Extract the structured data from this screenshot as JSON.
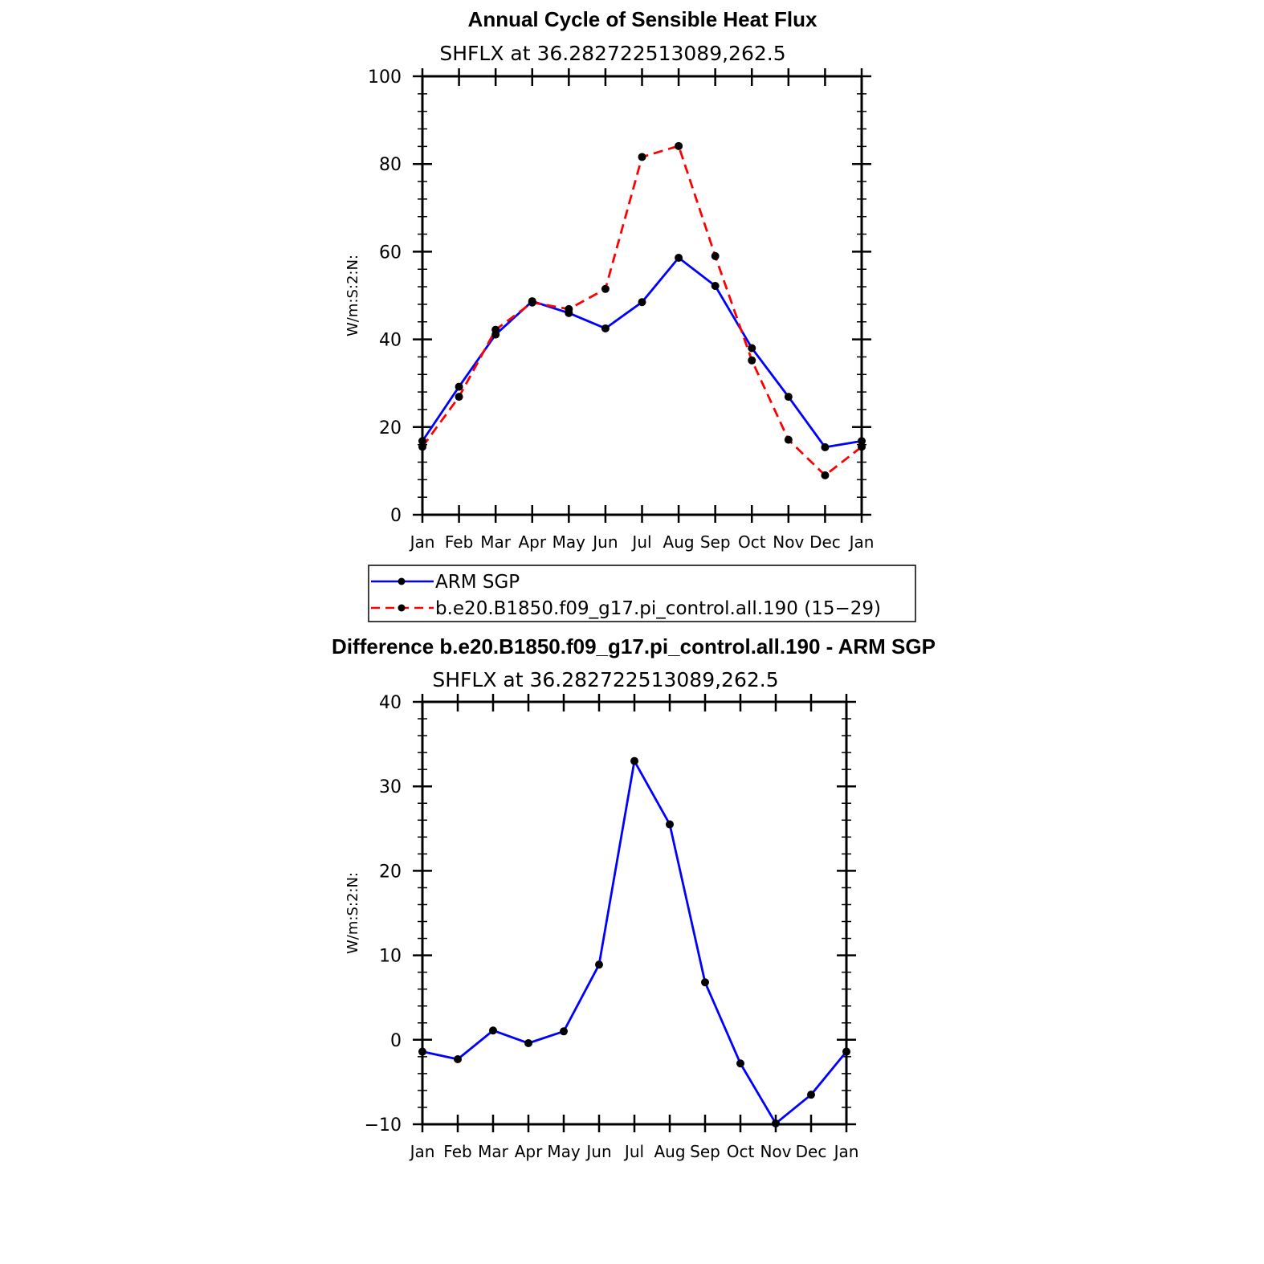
{
  "chart_data": [
    {
      "type": "line",
      "title": "Annual Cycle of Sensible Heat Flux",
      "subtitle": "SHFLX at 36.282722513089,262.5",
      "ylabel": "W/m:S:2:N:",
      "xlabel": "",
      "categories": [
        "Jan",
        "Feb",
        "Mar",
        "Apr",
        "May",
        "Jun",
        "Jul",
        "Aug",
        "Sep",
        "Oct",
        "Nov",
        "Dec",
        "Jan"
      ],
      "ylim": [
        0,
        100
      ],
      "yticks": [
        0,
        20,
        40,
        60,
        80,
        100
      ],
      "ytick_labels": [
        "0",
        "20",
        "40",
        "60",
        "80",
        "100"
      ],
      "series": [
        {
          "name": "ARM SGP",
          "color": "#0000ff",
          "dash": "solid",
          "values": [
            16.8,
            29.2,
            41.1,
            48.7,
            46.0,
            42.5,
            48.5,
            58.6,
            52.2,
            38.0,
            26.9,
            15.4,
            16.8
          ]
        },
        {
          "name": "b.e20.B1850.f09_g17.pi_control.all.190 (15−29)",
          "color": "#ff0000",
          "dash": "dashed",
          "values": [
            15.5,
            26.9,
            42.2,
            48.4,
            46.9,
            51.5,
            81.6,
            84.1,
            59.0,
            35.2,
            17.1,
            9.0,
            15.5
          ]
        }
      ],
      "legend": {
        "placement": "below"
      }
    },
    {
      "type": "line",
      "title": "Difference b.e20.B1850.f09_g17.pi_control.all.190 - ARM SGP",
      "subtitle": "SHFLX at 36.282722513089,262.5",
      "ylabel": "W/m:S:2:N:",
      "xlabel": "",
      "categories": [
        "Jan",
        "Feb",
        "Mar",
        "Apr",
        "May",
        "Jun",
        "Jul",
        "Aug",
        "Sep",
        "Oct",
        "Nov",
        "Dec",
        "Jan"
      ],
      "ylim": [
        -10,
        40
      ],
      "yticks": [
        -10,
        0,
        10,
        20,
        30,
        40
      ],
      "ytick_labels": [
        "−10",
        "0",
        "10",
        "20",
        "30",
        "40"
      ],
      "series": [
        {
          "name": "Difference",
          "color": "#0000ff",
          "dash": "solid",
          "values": [
            -1.4,
            -2.3,
            1.1,
            -0.4,
            1.0,
            8.9,
            33.0,
            25.5,
            6.8,
            -2.8,
            -9.9,
            -6.5,
            -1.4
          ]
        }
      ]
    }
  ]
}
